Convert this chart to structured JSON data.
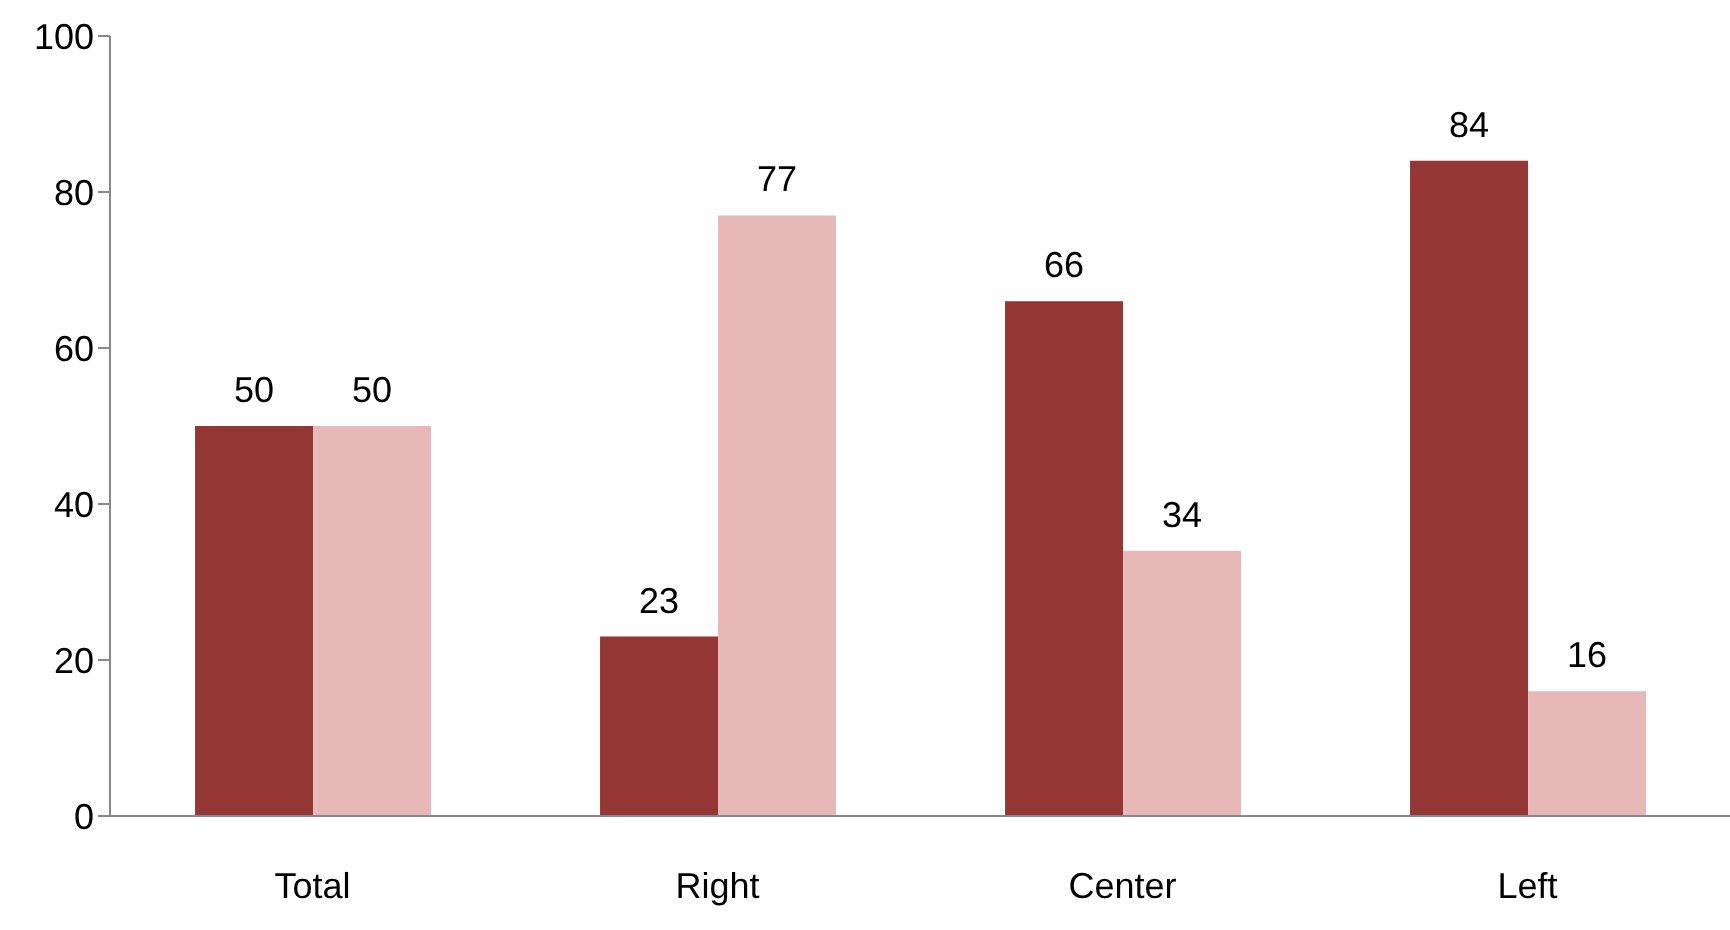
{
  "chart_data": {
    "type": "bar",
    "categories": [
      "Total",
      "Right",
      "Center",
      "Left"
    ],
    "series": [
      {
        "color": "#943634",
        "values": [
          50,
          23,
          66,
          84
        ]
      },
      {
        "color": "#e6b9b8",
        "values": [
          50,
          77,
          34,
          16
        ]
      }
    ],
    "ylim": [
      0,
      100
    ],
    "yticks": [
      0,
      20,
      40,
      60,
      80,
      100
    ],
    "grid": false,
    "legend": false,
    "data_labels": true
  }
}
